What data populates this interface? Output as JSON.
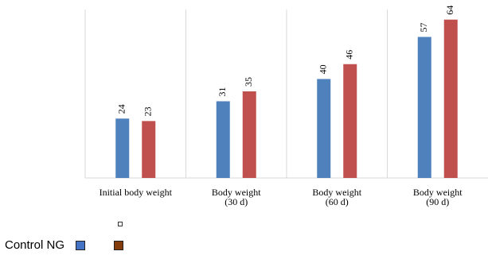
{
  "chart_data": {
    "type": "bar",
    "categories": [
      [
        "Initial body weight"
      ],
      [
        "Body weight",
        "(30 d)"
      ],
      [
        "Body weight",
        "(60 d)"
      ],
      [
        "Body weight",
        "(90 d)"
      ]
    ],
    "series": [
      {
        "values": [
          24,
          31,
          40,
          57
        ],
        "color": "#4f81bd"
      },
      {
        "values": [
          23,
          35,
          46,
          64
        ],
        "color": "#c0504d"
      }
    ],
    "ylim": [
      0,
      70
    ],
    "grid": false,
    "data_labels": true,
    "legend_placement": "bottom-left"
  },
  "legend": {
    "label": "Control NG",
    "swatch_colors": [
      "#4472c4",
      "#843c0c"
    ]
  }
}
